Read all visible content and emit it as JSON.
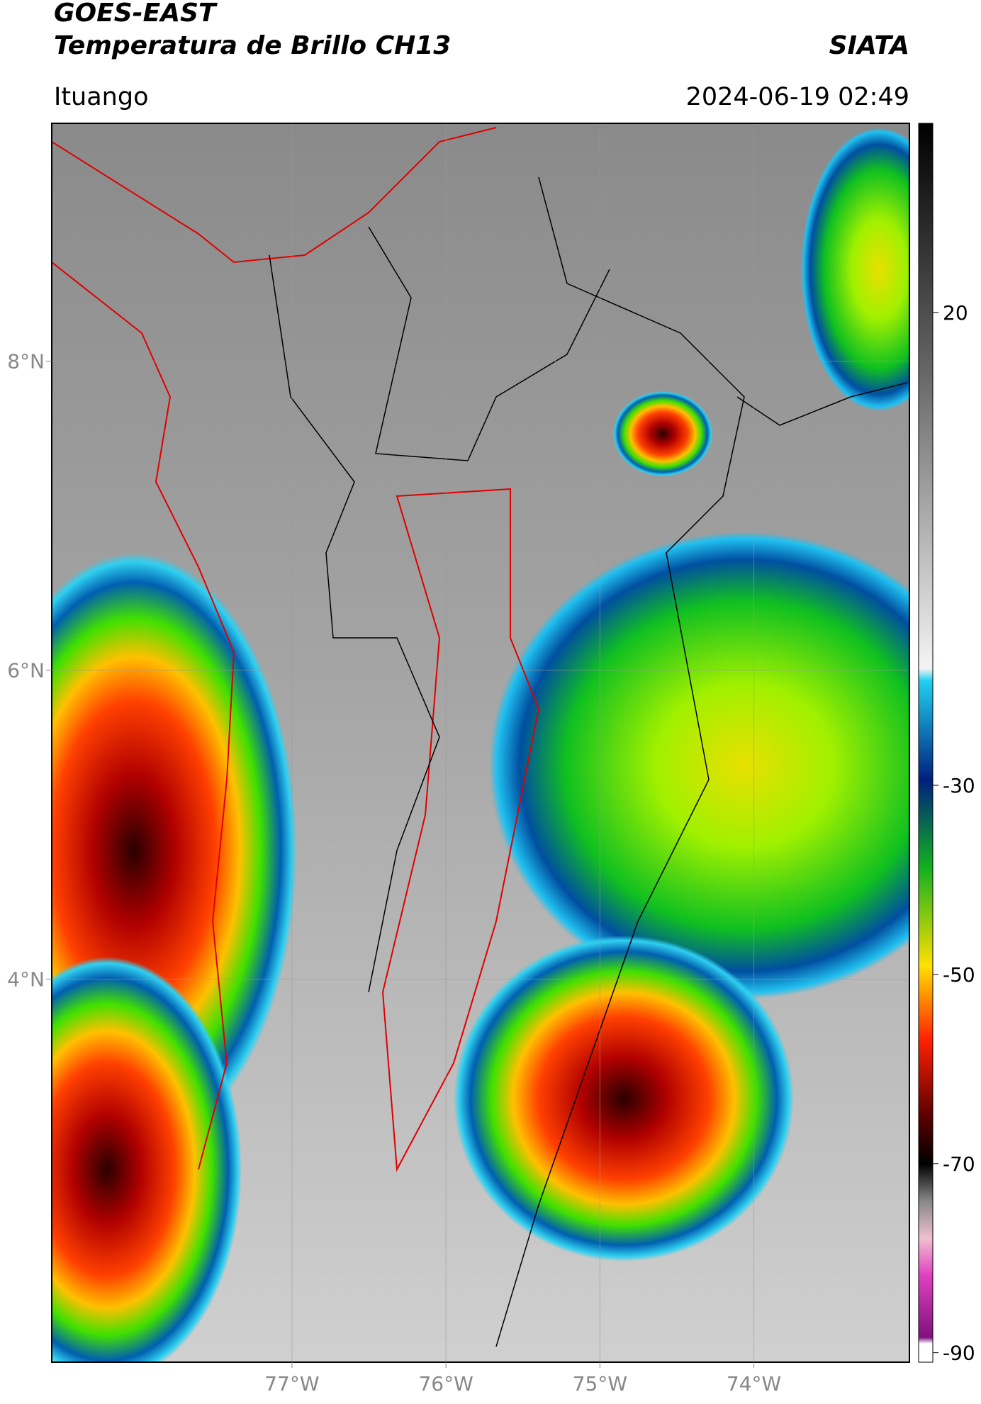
{
  "header": {
    "title_line1": "GOES-EAST",
    "title_line2": "Temperatura de Brillo CH13",
    "source": "SIATA",
    "location": "Ituango",
    "datetime": "2024-06-19 02:49"
  },
  "map": {
    "xlim": [
      -78.56,
      -72.99
    ],
    "ylim": [
      1.52,
      9.54
    ],
    "xticks": [
      {
        "value": -77,
        "label": "77°W"
      },
      {
        "value": -76,
        "label": "76°W"
      },
      {
        "value": -75,
        "label": "75°W"
      },
      {
        "value": -74,
        "label": "74°W"
      }
    ],
    "yticks": [
      {
        "value": 8,
        "label": "8°N"
      },
      {
        "value": 6,
        "label": "6°N"
      },
      {
        "value": 4,
        "label": "4°N"
      }
    ],
    "grid": true
  },
  "colorbar": {
    "lim": [
      -91,
      40
    ],
    "ticks": [
      20,
      -30,
      -50,
      -70,
      -90
    ]
  }
}
